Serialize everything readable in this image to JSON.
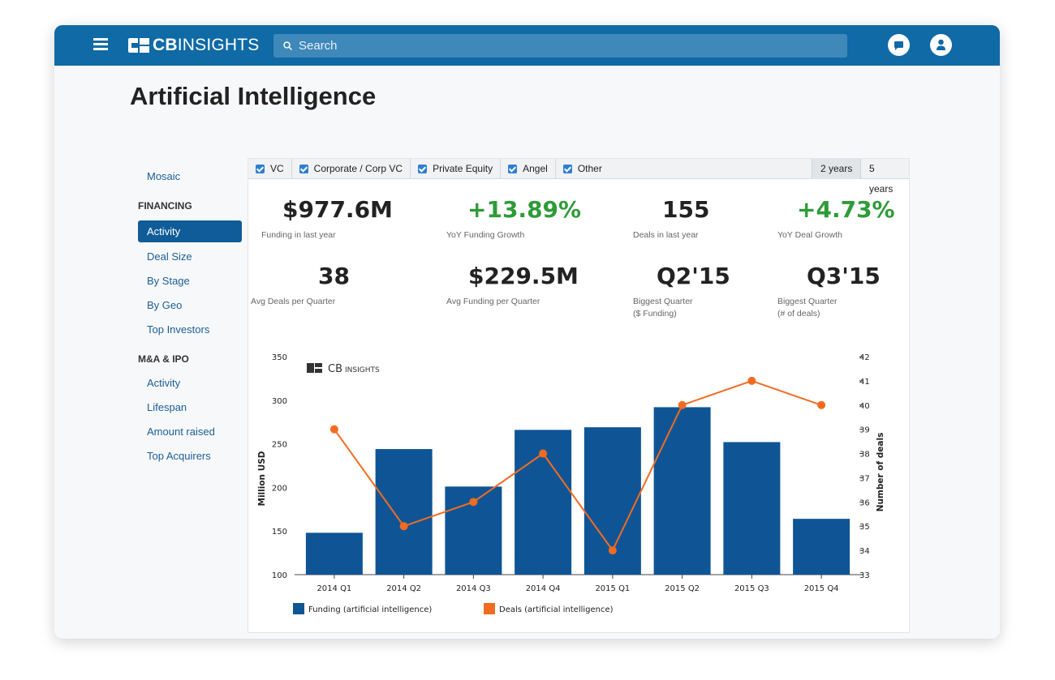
{
  "app": {
    "logo_bold": "CB",
    "logo_light": "INSIGHTS",
    "search_placeholder": "Search"
  },
  "page_title": "Artificial Intelligence",
  "sidebar": {
    "mosaic": "Mosaic",
    "financing_header": "FINANCING",
    "financing_items": [
      "Activity",
      "Deal Size",
      "By Stage",
      "By Geo",
      "Top Investors"
    ],
    "mna_header": "M&A & IPO",
    "mna_items": [
      "Activity",
      "Lifespan",
      "Amount raised",
      "Top Acquirers"
    ]
  },
  "filters": [
    "VC",
    "Corporate / Corp VC",
    "Private Equity",
    "Angel",
    "Other"
  ],
  "ranges": [
    "2 years",
    "5 years"
  ],
  "stats": [
    {
      "value": "$977.6M",
      "label": "Funding in last year",
      "color": "#222222"
    },
    {
      "value": "+13.89%",
      "label": "YoY Funding Growth",
      "color": "#2e9b38"
    },
    {
      "value": "155",
      "label": "Deals in last year",
      "color": "#222222"
    },
    {
      "value": "+4.73%",
      "label": "YoY Deal Growth",
      "color": "#2e9b38"
    },
    {
      "value": "38",
      "label": "Avg Deals per Quarter",
      "color": "#222222"
    },
    {
      "value": "$229.5M",
      "label": "Avg Funding per Quarter",
      "color": "#222222"
    },
    {
      "value": "Q2'15",
      "label": "Biggest Quarter",
      "label2": "($ Funding)",
      "color": "#222222"
    },
    {
      "value": "Q3'15",
      "label": "Biggest Quarter",
      "label2": "(# of deals)",
      "color": "#222222"
    }
  ],
  "chart_data": {
    "type": "bar",
    "watermark_bold": "CB",
    "watermark_light": "INSIGHTS",
    "categories": [
      "2014 Q1",
      "2014 Q2",
      "2014 Q3",
      "2014 Q4",
      "2015 Q1",
      "2015 Q2",
      "2015 Q3",
      "2015 Q4"
    ],
    "series": [
      {
        "name": "Funding (artificial intelligence)",
        "type": "bar",
        "axis": "left",
        "color": "#0f5595",
        "values": [
          148,
          244,
          201,
          266,
          269,
          292,
          252,
          164
        ]
      },
      {
        "name": "Deals (artificial intelligence)",
        "type": "line",
        "axis": "right",
        "color": "#f26b21",
        "values": [
          39,
          35,
          36,
          38,
          34,
          40,
          41,
          40
        ]
      }
    ],
    "ylabel": "Million USD",
    "y2label": "Number of deals",
    "ylim": [
      100,
      350
    ],
    "yticks": [
      100,
      150,
      200,
      250,
      300,
      350
    ],
    "y2lim": [
      33,
      42
    ],
    "y2ticks": [
      33,
      34,
      35,
      36,
      37,
      38,
      39,
      40,
      41,
      42
    ],
    "legend": "bottom-left"
  }
}
